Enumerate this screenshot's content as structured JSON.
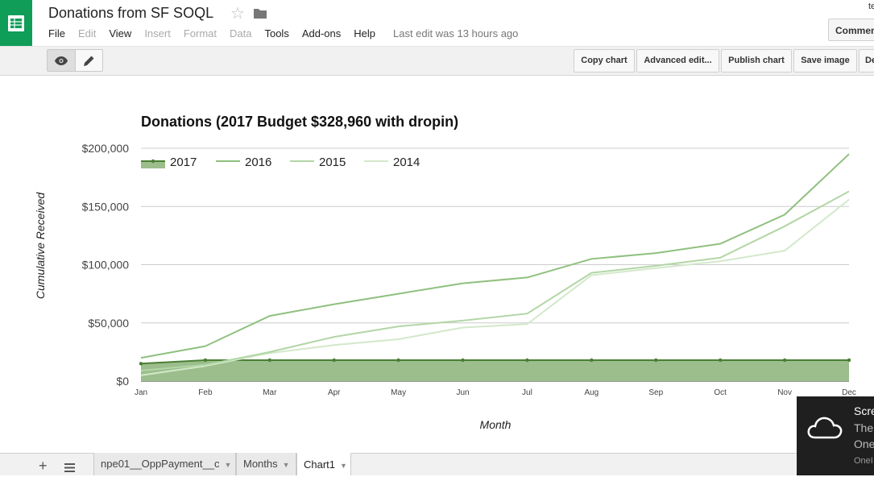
{
  "app": {
    "doc_title": "Donations from SF SOQL",
    "user_fragment": "te",
    "comments_label": "Commen",
    "last_edit": "Last edit was 13 hours ago"
  },
  "menu": [
    {
      "label": "File",
      "enabled": true
    },
    {
      "label": "Edit",
      "enabled": false
    },
    {
      "label": "View",
      "enabled": true
    },
    {
      "label": "Insert",
      "enabled": false
    },
    {
      "label": "Format",
      "enabled": false
    },
    {
      "label": "Data",
      "enabled": false
    },
    {
      "label": "Tools",
      "enabled": true
    },
    {
      "label": "Add-ons",
      "enabled": true
    },
    {
      "label": "Help",
      "enabled": true
    }
  ],
  "toolbar": {
    "copy_chart": "Copy chart",
    "advanced_edit": "Advanced edit...",
    "publish_chart": "Publish chart",
    "save_image": "Save image",
    "delete_fragment": "De"
  },
  "chart_data": {
    "type": "line",
    "title": "Donations (2017 Budget $328,960 with dropin)",
    "xlabel": "Month",
    "ylabel": "Cumulative Received",
    "categories": [
      "Jan",
      "Feb",
      "Mar",
      "Apr",
      "May",
      "Jun",
      "Jul",
      "Aug",
      "Sep",
      "Oct",
      "Nov",
      "Dec"
    ],
    "yticks": [
      "$0",
      "$50,000",
      "$100,000",
      "$150,000",
      "$200,000"
    ],
    "ylim": [
      0,
      200000
    ],
    "legend_position": "top-left",
    "grid": true,
    "series": [
      {
        "name": "2017",
        "type": "area",
        "color": "#4a7f35",
        "fill": "#9cbd8c",
        "values": [
          15000,
          18000,
          18000,
          18000,
          18000,
          18000,
          18000,
          18000,
          18000,
          18000,
          18000,
          18000
        ]
      },
      {
        "name": "2016",
        "type": "line",
        "color": "#8fc07e",
        "values": [
          20000,
          30000,
          56000,
          66000,
          75000,
          84000,
          89000,
          105000,
          110000,
          118000,
          143000,
          195000
        ]
      },
      {
        "name": "2015",
        "type": "line",
        "color": "#b2d6a6",
        "values": [
          9000,
          14000,
          25000,
          38000,
          47000,
          52000,
          58000,
          93000,
          99000,
          106000,
          133000,
          163000
        ]
      },
      {
        "name": "2014",
        "type": "line",
        "color": "#d3e8cb",
        "values": [
          5000,
          13000,
          24000,
          31000,
          36000,
          46000,
          49000,
          91000,
          97000,
          103000,
          112000,
          156000
        ]
      }
    ]
  },
  "sheets": [
    {
      "label": "npe01__OppPayment__c",
      "active": false
    },
    {
      "label": "Months",
      "active": false
    },
    {
      "label": "Chart1",
      "active": true
    }
  ],
  "toast": {
    "title": "Scre",
    "line1": "The",
    "line2": "One",
    "source": "OneI"
  }
}
